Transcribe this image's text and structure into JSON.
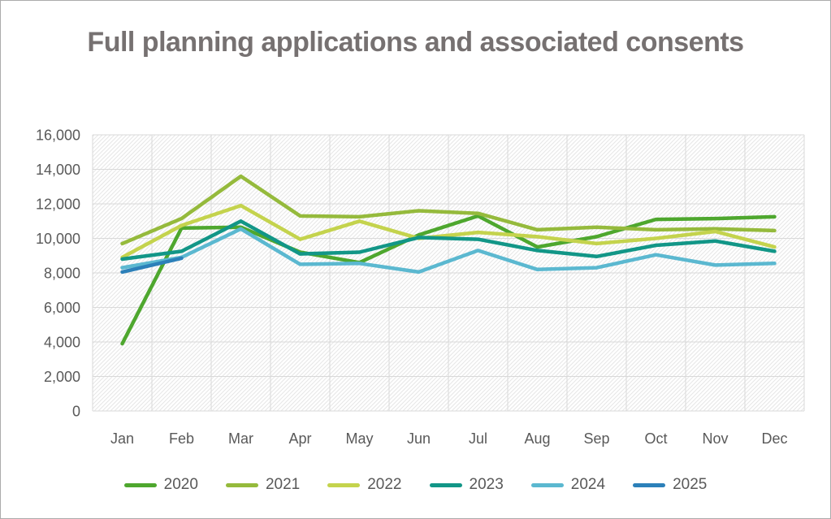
{
  "title": "Full planning applications and associated consents",
  "chart_data": {
    "type": "line",
    "title": "Full planning applications and associated consents",
    "categories": [
      "Jan",
      "Feb",
      "Mar",
      "Apr",
      "May",
      "Jun",
      "Jul",
      "Aug",
      "Sep",
      "Oct",
      "Nov",
      "Dec"
    ],
    "series": [
      {
        "name": "2020",
        "color": "#4EA72E",
        "values": [
          3900,
          10600,
          10650,
          9200,
          8600,
          10200,
          11300,
          9500,
          10100,
          11100,
          11150,
          11250
        ]
      },
      {
        "name": "2021",
        "color": "#95BA3C",
        "values": [
          9700,
          11150,
          13600,
          11300,
          11250,
          11600,
          11450,
          10500,
          10650,
          10500,
          10550,
          10450
        ]
      },
      {
        "name": "2022",
        "color": "#C4D34D",
        "values": [
          8900,
          10750,
          11900,
          9950,
          11000,
          10000,
          10350,
          10100,
          9700,
          10000,
          10400,
          9500
        ]
      },
      {
        "name": "2023",
        "color": "#129687",
        "values": [
          8800,
          9250,
          11000,
          9100,
          9200,
          10050,
          9950,
          9300,
          8950,
          9600,
          9850,
          9250
        ]
      },
      {
        "name": "2024",
        "color": "#5BB8D0",
        "values": [
          8300,
          8900,
          10550,
          8500,
          8550,
          8050,
          9300,
          8200,
          8300,
          9050,
          8450,
          8550
        ]
      },
      {
        "name": "2025",
        "color": "#2C80B9",
        "values": [
          8050,
          8850,
          null,
          null,
          null,
          null,
          null,
          null,
          null,
          null,
          null,
          null
        ]
      }
    ],
    "ylim": [
      0,
      16000
    ],
    "ytick_step": 2000,
    "grid": "both",
    "legend_position": "bottom"
  },
  "colors": {
    "title_text": "#767171",
    "axis_text": "#595959",
    "gridline": "#d9d9d9",
    "hatch_line": "#e7e7e7",
    "canvas_border": "#ababab"
  }
}
